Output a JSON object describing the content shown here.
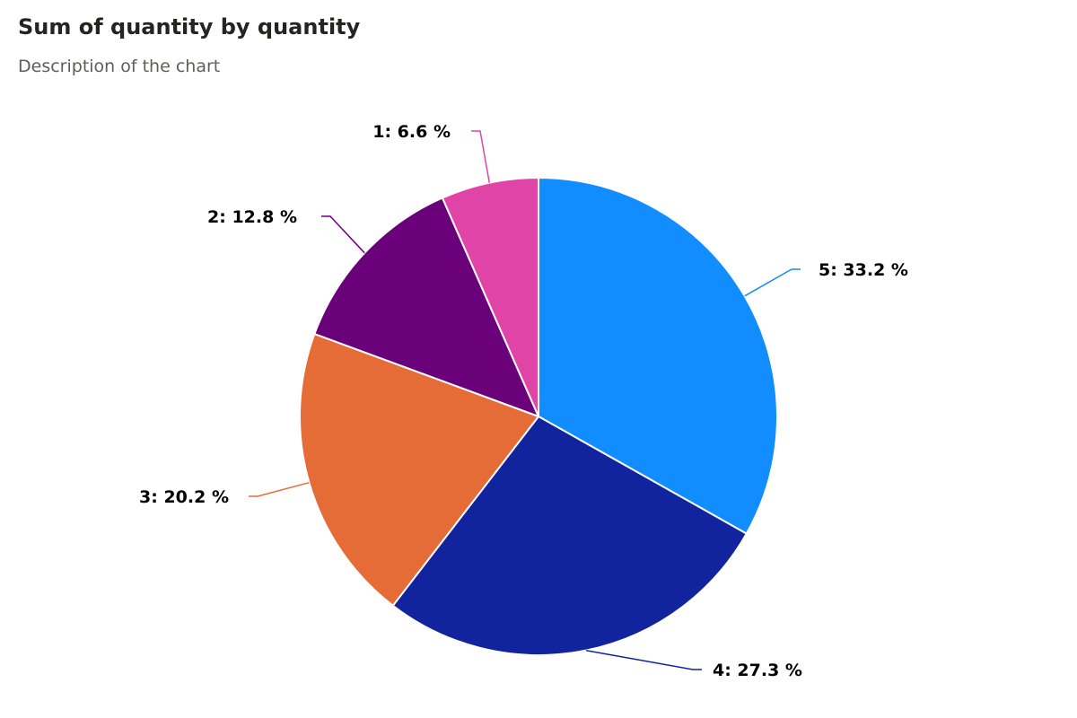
{
  "header": {
    "title": "Sum of quantity by quantity",
    "subtitle": "Description of the chart"
  },
  "chart_data": {
    "type": "pie",
    "title": "Sum of quantity by quantity",
    "subtitle": "Description of the chart",
    "categories": [
      "5",
      "4",
      "3",
      "2",
      "1"
    ],
    "values": [
      33.2,
      27.3,
      20.2,
      12.8,
      6.6
    ],
    "labels": [
      "5: 33.2 %",
      "4: 27.3 %",
      "3: 20.2 %",
      "2: 12.8 %",
      "1: 6.6 %"
    ],
    "colors": [
      "#118DFF",
      "#12239E",
      "#E66C37",
      "#6B007B",
      "#E044A7"
    ],
    "value_unit": "%",
    "start_angle": "12 o'clock",
    "direction": "clockwise"
  }
}
